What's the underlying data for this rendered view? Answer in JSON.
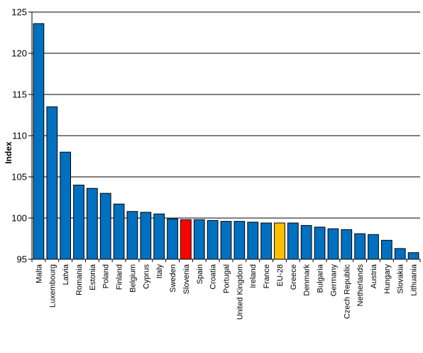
{
  "chart_data": {
    "type": "bar",
    "title": "",
    "xlabel": "",
    "ylabel": "Index",
    "ylim": [
      95,
      125
    ],
    "yticks": [
      95,
      100,
      105,
      110,
      115,
      120,
      125
    ],
    "grid": true,
    "legend": "none",
    "colors": {
      "default": "#0070C0",
      "highlight_slovenia": "#FF0000",
      "highlight_eu": "#FFC000",
      "gridline": "#000000",
      "bar_outline": "#000000"
    },
    "categories": [
      "Malta",
      "Luxembourg",
      "Latvia",
      "Romania",
      "Estonia",
      "Poland",
      "Finland",
      "Belgium",
      "Cyprus",
      "Italy",
      "Sweden",
      "Slovenia",
      "Spain",
      "Croatia",
      "Portugal",
      "United Kingdom",
      "Ireland",
      "France",
      "EU-28",
      "Greece",
      "Denmark",
      "Bulgaria",
      "Germany",
      "Czech Republic",
      "Netherlands",
      "Austria",
      "Hungary",
      "Slovakia",
      "Lithuania"
    ],
    "values": [
      123.6,
      113.5,
      108.0,
      104.0,
      103.6,
      103.0,
      101.7,
      100.8,
      100.7,
      100.5,
      99.9,
      99.8,
      99.8,
      99.7,
      99.6,
      99.6,
      99.5,
      99.4,
      99.4,
      99.4,
      99.1,
      98.9,
      98.7,
      98.6,
      98.1,
      98.0,
      97.3,
      96.3,
      95.8
    ],
    "highlights": {
      "Slovenia": "highlight_slovenia",
      "EU-28": "highlight_eu"
    }
  }
}
